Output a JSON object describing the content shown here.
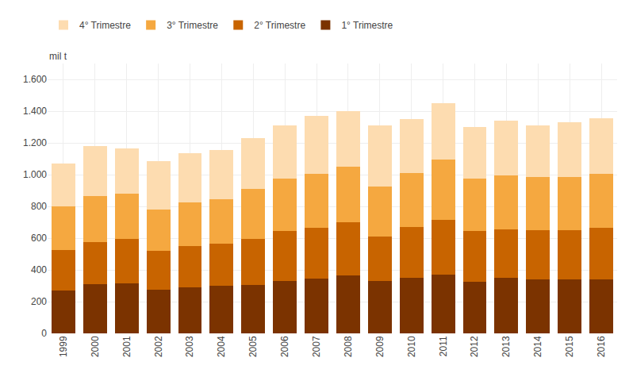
{
  "chart_data": {
    "type": "bar",
    "stacked": true,
    "ylabel": "mil t",
    "categories": [
      "1999",
      "2000",
      "2001",
      "2002",
      "2003",
      "2004",
      "2005",
      "2006",
      "2007",
      "2008",
      "2009",
      "2010",
      "2011",
      "2012",
      "2013",
      "2014",
      "2015",
      "2016"
    ],
    "series": [
      {
        "name": "1° Trimestre",
        "color": "#7B3300",
        "values": [
          270,
          310,
          315,
          275,
          290,
          300,
          305,
          330,
          345,
          365,
          330,
          350,
          370,
          325,
          350,
          340,
          340,
          340
        ]
      },
      {
        "name": "2° Trimestre",
        "color": "#C86400",
        "values": [
          255,
          265,
          280,
          245,
          260,
          265,
          290,
          315,
          320,
          335,
          280,
          320,
          345,
          320,
          305,
          310,
          310,
          325
        ]
      },
      {
        "name": "3° Trimestre",
        "color": "#F5A840",
        "values": [
          275,
          290,
          285,
          260,
          275,
          280,
          315,
          330,
          340,
          350,
          315,
          340,
          380,
          330,
          340,
          335,
          335,
          340
        ]
      },
      {
        "name": "4° Trimestre",
        "color": "#FDDCB0",
        "values": [
          270,
          315,
          285,
          305,
          310,
          310,
          320,
          335,
          365,
          350,
          385,
          340,
          355,
          325,
          345,
          325,
          345,
          350
        ]
      }
    ],
    "ylim": [
      0,
      1700
    ],
    "yticks": [
      0,
      200,
      400,
      600,
      800,
      {
        "value": 1000,
        "label": "1.000"
      },
      {
        "value": 1200,
        "label": "1.200"
      },
      {
        "value": 1400,
        "label": "1.400"
      },
      {
        "value": 1600,
        "label": "1.600"
      }
    ],
    "grid": true,
    "legend": "top"
  }
}
